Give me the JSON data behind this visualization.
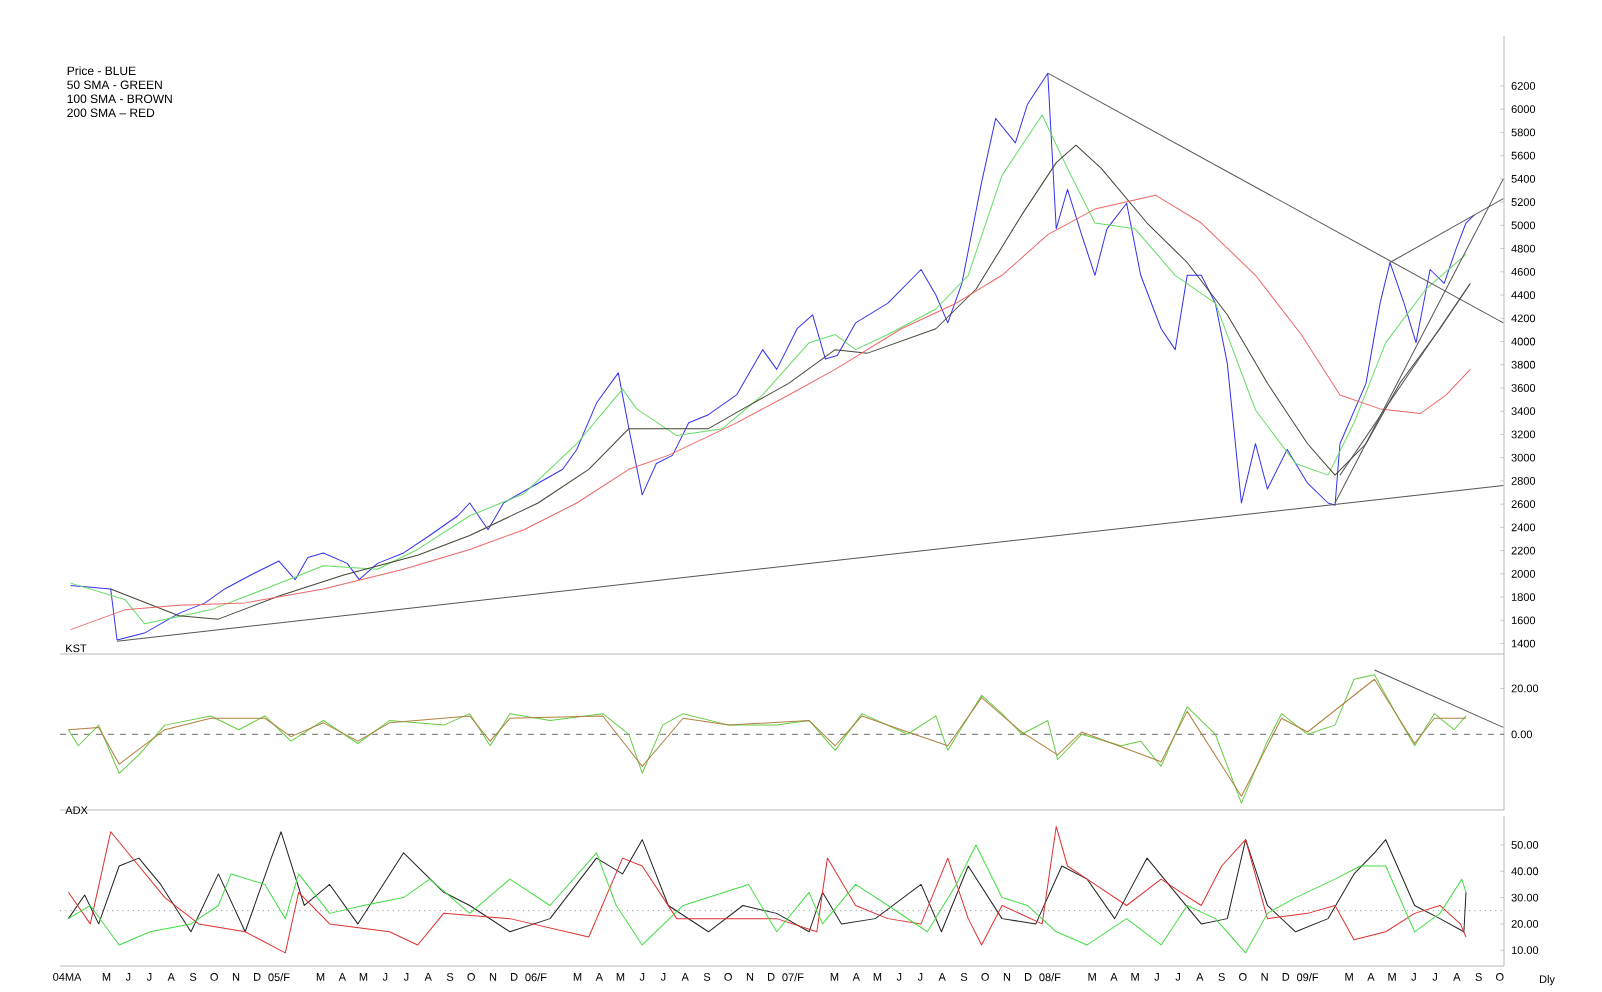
{
  "chart_data": [
    {
      "type": "line",
      "annotations": [
        "Price - BLUE",
        "50 SMA - GREEN",
        "100 SMA - BROWN",
        "200 SMA – RED"
      ],
      "xlim": [
        "2004-03-10",
        "2009-10-21"
      ],
      "ylim": [
        1310,
        6630
      ],
      "yticks": [
        1400,
        1600,
        1800,
        2000,
        2200,
        2400,
        2600,
        2800,
        3000,
        3200,
        3400,
        3600,
        3800,
        4000,
        4200,
        4400,
        4600,
        4800,
        5000,
        5200,
        5400,
        5600,
        5800,
        6000,
        6200
      ],
      "tick_labels": "y",
      "series": [
        {
          "color": "#3333ee",
          "x": [
            "2004-03-25",
            "2004-05-21",
            "2004-05-30",
            "2004-07-08",
            "2004-08-26",
            "2004-10-02",
            "2004-10-30",
            "2004-12-06",
            "2005-01-15",
            "2005-02-07",
            "2005-02-25",
            "2005-03-19",
            "2005-04-22",
            "2005-05-09",
            "2005-06-04",
            "2005-07-11",
            "2005-08-17",
            "2005-09-26",
            "2005-10-13",
            "2005-11-08",
            "2005-11-30",
            "2006-01-18",
            "2006-02-22",
            "2006-03-14",
            "2006-04-11",
            "2006-05-12",
            "2006-05-27",
            "2006-06-15",
            "2006-07-05",
            "2006-07-28",
            "2006-08-20",
            "2006-09-17",
            "2006-10-27",
            "2006-12-03",
            "2006-12-23",
            "2007-01-21",
            "2007-02-12",
            "2007-03-02",
            "2007-03-19",
            "2007-04-14",
            "2007-05-30",
            "2007-07-16",
            "2007-08-06",
            "2007-08-23",
            "2007-09-12",
            "2007-10-10",
            "2007-10-30",
            "2007-11-27",
            "2007-12-14",
            "2008-01-12",
            "2008-01-24",
            "2008-02-09",
            "2008-02-29",
            "2008-03-19",
            "2008-04-05",
            "2008-05-03",
            "2008-05-23",
            "2008-06-21",
            "2008-07-11",
            "2008-07-28",
            "2008-08-17",
            "2008-09-06",
            "2008-09-23",
            "2008-10-13",
            "2008-11-02",
            "2008-11-19",
            "2008-12-17",
            "2009-01-15",
            "2009-02-13",
            "2009-02-23",
            "2009-03-02",
            "2009-04-08",
            "2009-04-28",
            "2009-05-12",
            "2009-06-01",
            "2009-06-18",
            "2009-07-08",
            "2009-07-28",
            "2009-08-14",
            "2009-08-28",
            "2009-09-09"
          ],
          "values": [
            1900,
            1870,
            1430,
            1490,
            1660,
            1750,
            1870,
            1990,
            2110,
            1950,
            2140,
            2180,
            2090,
            1950,
            2090,
            2180,
            2330,
            2500,
            2610,
            2380,
            2610,
            2780,
            2900,
            3070,
            3470,
            3730,
            3250,
            2680,
            2950,
            3020,
            3300,
            3370,
            3540,
            3930,
            3760,
            4110,
            4230,
            3850,
            3880,
            4160,
            4330,
            4620,
            4400,
            4160,
            4500,
            5370,
            5920,
            5710,
            6040,
            6310,
            4970,
            5310,
            4920,
            4570,
            4970,
            5190,
            4570,
            4110,
            3930,
            4570,
            4570,
            4330,
            3810,
            2610,
            3120,
            2730,
            3070,
            2780,
            2610,
            2590,
            3120,
            3640,
            4330,
            4680,
            4330,
            3990,
            4620,
            4500,
            4800,
            5020,
            5090
          ]
        },
        {
          "color": "#66dd66",
          "x": [
            "2004-03-25",
            "2004-06-10",
            "2004-07-08",
            "2004-10-10",
            "2004-12-26",
            "2005-03-19",
            "2005-06-04",
            "2005-07-31",
            "2005-10-13",
            "2005-12-29",
            "2006-03-14",
            "2006-05-18",
            "2006-06-07",
            "2006-08-03",
            "2006-10-07",
            "2006-12-03",
            "2007-02-07",
            "2007-03-16",
            "2007-04-14",
            "2007-05-30",
            "2007-08-06",
            "2007-09-21",
            "2007-11-08",
            "2008-01-04",
            "2008-02-09",
            "2008-03-19",
            "2008-05-15",
            "2008-07-11",
            "2008-09-06",
            "2008-11-02",
            "2008-12-29",
            "2009-02-13",
            "2009-03-22",
            "2009-05-06",
            "2009-07-02",
            "2009-08-28"
          ],
          "values": [
            1920,
            1780,
            1570,
            1690,
            1870,
            2070,
            2040,
            2210,
            2500,
            2690,
            3120,
            3590,
            3420,
            3190,
            3250,
            3540,
            3990,
            4060,
            3930,
            4060,
            4280,
            4570,
            5430,
            5950,
            5490,
            5020,
            4970,
            4570,
            4330,
            3410,
            2950,
            2850,
            3300,
            3990,
            4450,
            4750
          ]
        },
        {
          "color": "#444433",
          "x": [
            "2004-05-21",
            "2004-08-26",
            "2004-10-21",
            "2005-01-15",
            "2005-04-17",
            "2005-07-31",
            "2005-10-13",
            "2006-01-18",
            "2006-03-31",
            "2006-05-27",
            "2006-09-17",
            "2006-11-05",
            "2007-01-09",
            "2007-03-16",
            "2007-05-01",
            "2007-08-06",
            "2007-10-02",
            "2007-12-06",
            "2008-01-24",
            "2008-02-21",
            "2008-03-28",
            "2008-06-01",
            "2008-07-28",
            "2008-09-23",
            "2008-11-19",
            "2009-01-15",
            "2009-02-23",
            "2009-04-08",
            "2009-05-26",
            "2009-07-22",
            "2009-09-03"
          ],
          "values": [
            1870,
            1640,
            1610,
            1810,
            1990,
            2160,
            2330,
            2610,
            2900,
            3250,
            3250,
            3420,
            3640,
            3930,
            3900,
            4110,
            4450,
            5090,
            5540,
            5690,
            5490,
            5020,
            4680,
            4230,
            3640,
            3120,
            2850,
            3120,
            3640,
            4110,
            4500
          ]
        },
        {
          "color": "#ee6666",
          "x": [
            "2004-03-25",
            "2004-06-10",
            "2004-08-26",
            "2004-11-28",
            "2005-03-19",
            "2005-07-11",
            "2005-10-13",
            "2005-12-29",
            "2006-03-14",
            "2006-05-27",
            "2006-07-22",
            "2006-10-27",
            "2007-01-09",
            "2007-03-16",
            "2007-06-18",
            "2007-09-04",
            "2007-11-08",
            "2008-01-12",
            "2008-03-19",
            "2008-06-13",
            "2008-08-17",
            "2008-11-02",
            "2009-01-06",
            "2009-03-02",
            "2009-04-28",
            "2009-06-24",
            "2009-07-31",
            "2009-09-03"
          ],
          "values": [
            1520,
            1690,
            1730,
            1750,
            1870,
            2040,
            2210,
            2380,
            2610,
            2900,
            3020,
            3300,
            3540,
            3760,
            4110,
            4330,
            4570,
            4920,
            5140,
            5260,
            5020,
            4570,
            4060,
            3540,
            3420,
            3380,
            3540,
            3760
          ]
        },
        {
          "color": "#555555",
          "x": [
            "2004-05-30",
            "2009-10-20"
          ],
          "values": [
            1420,
            2760
          ]
        },
        {
          "color": "#555555",
          "x": [
            "2008-01-12",
            "2009-10-20"
          ],
          "values": [
            6310,
            4160
          ]
        },
        {
          "color": "#555555",
          "x": [
            "2009-05-12",
            "2009-10-20"
          ],
          "values": [
            4680,
            5230
          ]
        },
        {
          "color": "#555555",
          "x": [
            "2009-02-23",
            "2009-10-20"
          ],
          "values": [
            2610,
            5400
          ]
        },
        {
          "color": "#555555",
          "x": [
            "2009-03-02",
            "2009-09-03"
          ],
          "values": [
            2850,
            4500
          ]
        }
      ]
    },
    {
      "type": "line",
      "title": "KST",
      "xlim": [
        "2004-03-10",
        "2009-10-21"
      ],
      "ylim": [
        -33,
        35
      ],
      "yticks": [
        {
          "value": 0,
          "label": "0.00"
        },
        {
          "value": 20,
          "label": "20.00"
        }
      ],
      "tick_labels": "y",
      "ref_lines": [
        {
          "axis": "y",
          "value": 0,
          "color": "#888888",
          "line_style": "dashed"
        }
      ],
      "series": [
        {
          "color": "#66cc44",
          "x": [
            "2004-03-22",
            "2004-04-05",
            "2004-05-04",
            "2004-06-02",
            "2004-06-30",
            "2004-08-06",
            "2004-10-10",
            "2004-11-19",
            "2004-12-26",
            "2005-02-01",
            "2005-03-19",
            "2005-05-07",
            "2005-06-21",
            "2005-09-06",
            "2005-10-13",
            "2005-11-11",
            "2005-12-09",
            "2006-02-04",
            "2006-04-20",
            "2006-05-27",
            "2006-06-15",
            "2006-07-14",
            "2006-08-12",
            "2006-10-16",
            "2006-12-23",
            "2007-02-07",
            "2007-03-16",
            "2007-04-23",
            "2007-06-27",
            "2007-08-06",
            "2007-08-23",
            "2007-10-10",
            "2007-11-08",
            "2007-12-06",
            "2008-01-12",
            "2008-01-26",
            "2008-02-29",
            "2008-04-25",
            "2008-05-23",
            "2008-06-21",
            "2008-07-28",
            "2008-09-06",
            "2008-10-13",
            "2008-11-19",
            "2008-12-09",
            "2009-01-15",
            "2009-02-23",
            "2009-03-22",
            "2009-04-20",
            "2009-05-06",
            "2009-05-26",
            "2009-06-16",
            "2009-07-14",
            "2009-08-11",
            "2009-08-28"
          ],
          "values": [
            2,
            -5,
            4,
            -17,
            -9,
            4,
            8,
            2,
            8,
            -3,
            6,
            -4,
            6,
            4,
            9,
            -5,
            9,
            6,
            9,
            0,
            -17,
            4,
            9,
            4,
            4,
            6,
            -7,
            9,
            0,
            8,
            -7,
            17,
            9,
            0,
            6,
            -11,
            0,
            -5,
            -3,
            -14,
            12,
            0,
            -30,
            -3,
            9,
            0,
            4,
            24,
            26,
            17,
            6,
            -5,
            9,
            2,
            8
          ]
        },
        {
          "color": "#b08040",
          "x": [
            "2004-03-22",
            "2004-05-04",
            "2004-06-02",
            "2004-08-06",
            "2004-10-10",
            "2004-12-26",
            "2005-02-01",
            "2005-03-19",
            "2005-05-07",
            "2005-06-21",
            "2005-10-13",
            "2005-11-11",
            "2005-12-09",
            "2006-04-20",
            "2006-06-15",
            "2006-08-12",
            "2006-10-16",
            "2007-02-07",
            "2007-03-16",
            "2007-04-23",
            "2007-06-27",
            "2007-08-23",
            "2007-10-10",
            "2007-12-06",
            "2008-01-26",
            "2008-02-29",
            "2008-06-21",
            "2008-07-28",
            "2008-10-13",
            "2008-12-09",
            "2009-01-15",
            "2009-04-20",
            "2009-06-16",
            "2009-07-14",
            "2009-08-28"
          ],
          "values": [
            2,
            3,
            -13,
            2,
            7,
            7,
            -1,
            5,
            -3,
            5,
            8,
            -3,
            7,
            8,
            -14,
            7,
            4,
            6,
            -5,
            8,
            1,
            -5,
            16,
            1,
            -9,
            1,
            -12,
            10,
            -27,
            7,
            1,
            24,
            -4,
            7,
            7
          ]
        },
        {
          "color": "#555555",
          "x": [
            "2009-04-20",
            "2009-10-20"
          ],
          "values": [
            28,
            3
          ]
        }
      ]
    },
    {
      "type": "line",
      "title": "ADX",
      "xlabel": "Dly",
      "xlim": [
        "2004-03-10",
        "2009-10-21"
      ],
      "ylim": [
        4,
        61
      ],
      "yticks": [
        {
          "value": 10,
          "label": "10.00"
        },
        {
          "value": 20,
          "label": "20.00"
        },
        {
          "value": 30,
          "label": "30.00"
        },
        {
          "value": 40,
          "label": "40.00"
        },
        {
          "value": 50,
          "label": "50.00"
        }
      ],
      "xticks": [
        {
          "value": "2004-03-20",
          "label": "04MA"
        },
        {
          "value": "2004-05-15",
          "label": "M"
        },
        {
          "value": "2004-06-15",
          "label": "J"
        },
        {
          "value": "2004-07-15",
          "label": "J"
        },
        {
          "value": "2004-08-15",
          "label": "A"
        },
        {
          "value": "2004-09-15",
          "label": "S"
        },
        {
          "value": "2004-10-15",
          "label": "O"
        },
        {
          "value": "2004-11-15",
          "label": "N"
        },
        {
          "value": "2004-12-15",
          "label": "D"
        },
        {
          "value": "2005-01-15",
          "label": "05/F"
        },
        {
          "value": "2005-03-15",
          "label": "M"
        },
        {
          "value": "2005-04-15",
          "label": "A"
        },
        {
          "value": "2005-05-15",
          "label": "M"
        },
        {
          "value": "2005-06-15",
          "label": "J"
        },
        {
          "value": "2005-07-15",
          "label": "J"
        },
        {
          "value": "2005-08-15",
          "label": "A"
        },
        {
          "value": "2005-09-15",
          "label": "S"
        },
        {
          "value": "2005-10-15",
          "label": "O"
        },
        {
          "value": "2005-11-15",
          "label": "N"
        },
        {
          "value": "2005-12-15",
          "label": "D"
        },
        {
          "value": "2006-01-15",
          "label": "06/F"
        },
        {
          "value": "2006-03-15",
          "label": "M"
        },
        {
          "value": "2006-04-15",
          "label": "A"
        },
        {
          "value": "2006-05-15",
          "label": "M"
        },
        {
          "value": "2006-06-15",
          "label": "J"
        },
        {
          "value": "2006-07-15",
          "label": "J"
        },
        {
          "value": "2006-08-15",
          "label": "A"
        },
        {
          "value": "2006-09-15",
          "label": "S"
        },
        {
          "value": "2006-10-15",
          "label": "O"
        },
        {
          "value": "2006-11-15",
          "label": "N"
        },
        {
          "value": "2006-12-15",
          "label": "D"
        },
        {
          "value": "2007-01-15",
          "label": "07/F"
        },
        {
          "value": "2007-03-15",
          "label": "M"
        },
        {
          "value": "2007-04-15",
          "label": "A"
        },
        {
          "value": "2007-05-15",
          "label": "M"
        },
        {
          "value": "2007-06-15",
          "label": "J"
        },
        {
          "value": "2007-07-15",
          "label": "J"
        },
        {
          "value": "2007-08-15",
          "label": "A"
        },
        {
          "value": "2007-09-15",
          "label": "S"
        },
        {
          "value": "2007-10-15",
          "label": "O"
        },
        {
          "value": "2007-11-15",
          "label": "N"
        },
        {
          "value": "2007-12-15",
          "label": "D"
        },
        {
          "value": "2008-01-15",
          "label": "08/F"
        },
        {
          "value": "2008-03-15",
          "label": "M"
        },
        {
          "value": "2008-04-15",
          "label": "A"
        },
        {
          "value": "2008-05-15",
          "label": "M"
        },
        {
          "value": "2008-06-15",
          "label": "J"
        },
        {
          "value": "2008-07-15",
          "label": "J"
        },
        {
          "value": "2008-08-15",
          "label": "A"
        },
        {
          "value": "2008-09-15",
          "label": "S"
        },
        {
          "value": "2008-10-15",
          "label": "O"
        },
        {
          "value": "2008-11-15",
          "label": "N"
        },
        {
          "value": "2008-12-15",
          "label": "D"
        },
        {
          "value": "2009-01-15",
          "label": "09/F"
        },
        {
          "value": "2009-03-15",
          "label": "M"
        },
        {
          "value": "2009-04-15",
          "label": "A"
        },
        {
          "value": "2009-05-15",
          "label": "M"
        },
        {
          "value": "2009-06-15",
          "label": "J"
        },
        {
          "value": "2009-07-15",
          "label": "J"
        },
        {
          "value": "2009-08-15",
          "label": "A"
        },
        {
          "value": "2009-09-15",
          "label": "S"
        },
        {
          "value": "2009-10-15",
          "label": "O"
        }
      ],
      "ref_lines": [
        {
          "axis": "y",
          "value": 25,
          "color": "#888888",
          "line_style": "dotted"
        }
      ],
      "series": [
        {
          "color": "#222222",
          "x": [
            "2004-03-22",
            "2004-04-14",
            "2004-05-04",
            "2004-06-02",
            "2004-06-30",
            "2004-07-31",
            "2004-09-12",
            "2004-10-21",
            "2004-11-28",
            "2005-01-04",
            "2005-01-18",
            "2005-02-20",
            "2005-03-28",
            "2005-05-07",
            "2005-07-11",
            "2005-09-06",
            "2005-10-13",
            "2005-12-09",
            "2006-02-04",
            "2006-04-11",
            "2006-05-18",
            "2006-06-15",
            "2006-07-22",
            "2006-09-17",
            "2006-11-05",
            "2006-12-23",
            "2007-02-07",
            "2007-02-26",
            "2007-03-25",
            "2007-05-12",
            "2007-07-16",
            "2007-08-14",
            "2007-09-21",
            "2007-11-08",
            "2007-12-26",
            "2008-02-01",
            "2008-03-08",
            "2008-04-16",
            "2008-06-01",
            "2008-07-11",
            "2008-08-17",
            "2008-09-23",
            "2008-10-19",
            "2008-11-19",
            "2008-12-29",
            "2009-02-13",
            "2009-03-22",
            "2009-04-20",
            "2009-05-06",
            "2009-06-16",
            "2009-07-22",
            "2009-08-25",
            "2009-08-28"
          ],
          "values": [
            22,
            31,
            20,
            42,
            45,
            35,
            17,
            39,
            17,
            45,
            55,
            27,
            35,
            20,
            47,
            32,
            27,
            17,
            22,
            45,
            39,
            52,
            27,
            17,
            27,
            24,
            17,
            32,
            20,
            22,
            35,
            17,
            42,
            22,
            20,
            42,
            37,
            22,
            45,
            32,
            20,
            22,
            52,
            27,
            17,
            22,
            39,
            47,
            52,
            27,
            22,
            17,
            32
          ]
        },
        {
          "color": "#e03030",
          "x": [
            "2004-03-22",
            "2004-04-22",
            "2004-05-21",
            "2004-06-30",
            "2004-08-06",
            "2004-09-23",
            "2004-11-28",
            "2005-01-24",
            "2005-02-12",
            "2005-03-28",
            "2005-06-21",
            "2005-07-31",
            "2005-09-06",
            "2005-12-09",
            "2006-03-31",
            "2006-05-18",
            "2006-06-15",
            "2006-08-03",
            "2006-11-05",
            "2006-12-23",
            "2007-02-18",
            "2007-03-05",
            "2007-04-14",
            "2007-05-30",
            "2007-07-16",
            "2007-08-23",
            "2007-09-21",
            "2007-10-10",
            "2007-11-08",
            "2008-01-04",
            "2008-01-24",
            "2008-02-09",
            "2008-03-19",
            "2008-05-03",
            "2008-06-21",
            "2008-07-19",
            "2008-08-17",
            "2008-09-15",
            "2008-10-19",
            "2008-11-19",
            "2009-01-15",
            "2009-02-23",
            "2009-03-22",
            "2009-05-06",
            "2009-06-16",
            "2009-07-22",
            "2009-08-20",
            "2009-08-28"
          ],
          "values": [
            32,
            20,
            55,
            42,
            30,
            20,
            17,
            9,
            32,
            20,
            17,
            12,
            24,
            22,
            15,
            45,
            42,
            22,
            22,
            22,
            17,
            45,
            27,
            22,
            20,
            45,
            22,
            12,
            27,
            20,
            57,
            42,
            35,
            27,
            37,
            32,
            27,
            42,
            52,
            22,
            24,
            27,
            14,
            17,
            24,
            27,
            20,
            15
          ]
        },
        {
          "color": "#44dd44",
          "x": [
            "2004-03-22",
            "2004-04-22",
            "2004-06-02",
            "2004-07-16",
            "2004-09-12",
            "2004-10-21",
            "2004-11-08",
            "2004-12-26",
            "2005-01-24",
            "2005-02-12",
            "2005-03-28",
            "2005-05-15",
            "2005-07-11",
            "2005-08-17",
            "2005-10-13",
            "2005-12-09",
            "2006-02-04",
            "2006-04-11",
            "2006-05-09",
            "2006-06-15",
            "2006-08-12",
            "2006-11-13",
            "2006-12-23",
            "2007-02-07",
            "2007-02-26",
            "2007-04-14",
            "2007-05-30",
            "2007-07-25",
            "2007-09-04",
            "2007-10-02",
            "2007-11-08",
            "2007-12-14",
            "2008-01-24",
            "2008-03-08",
            "2008-05-03",
            "2008-06-21",
            "2008-07-28",
            "2008-09-06",
            "2008-10-19",
            "2008-11-19",
            "2008-12-29",
            "2009-02-23",
            "2009-03-31",
            "2009-05-06",
            "2009-06-16",
            "2009-07-22",
            "2009-08-22",
            "2009-08-28"
          ],
          "values": [
            22,
            27,
            12,
            17,
            20,
            27,
            39,
            35,
            22,
            39,
            24,
            27,
            30,
            37,
            24,
            37,
            27,
            47,
            27,
            12,
            27,
            35,
            17,
            32,
            20,
            35,
            27,
            17,
            35,
            50,
            30,
            27,
            17,
            12,
            22,
            12,
            27,
            22,
            9,
            24,
            30,
            37,
            42,
            42,
            17,
            24,
            37,
            32
          ]
        }
      ]
    }
  ]
}
